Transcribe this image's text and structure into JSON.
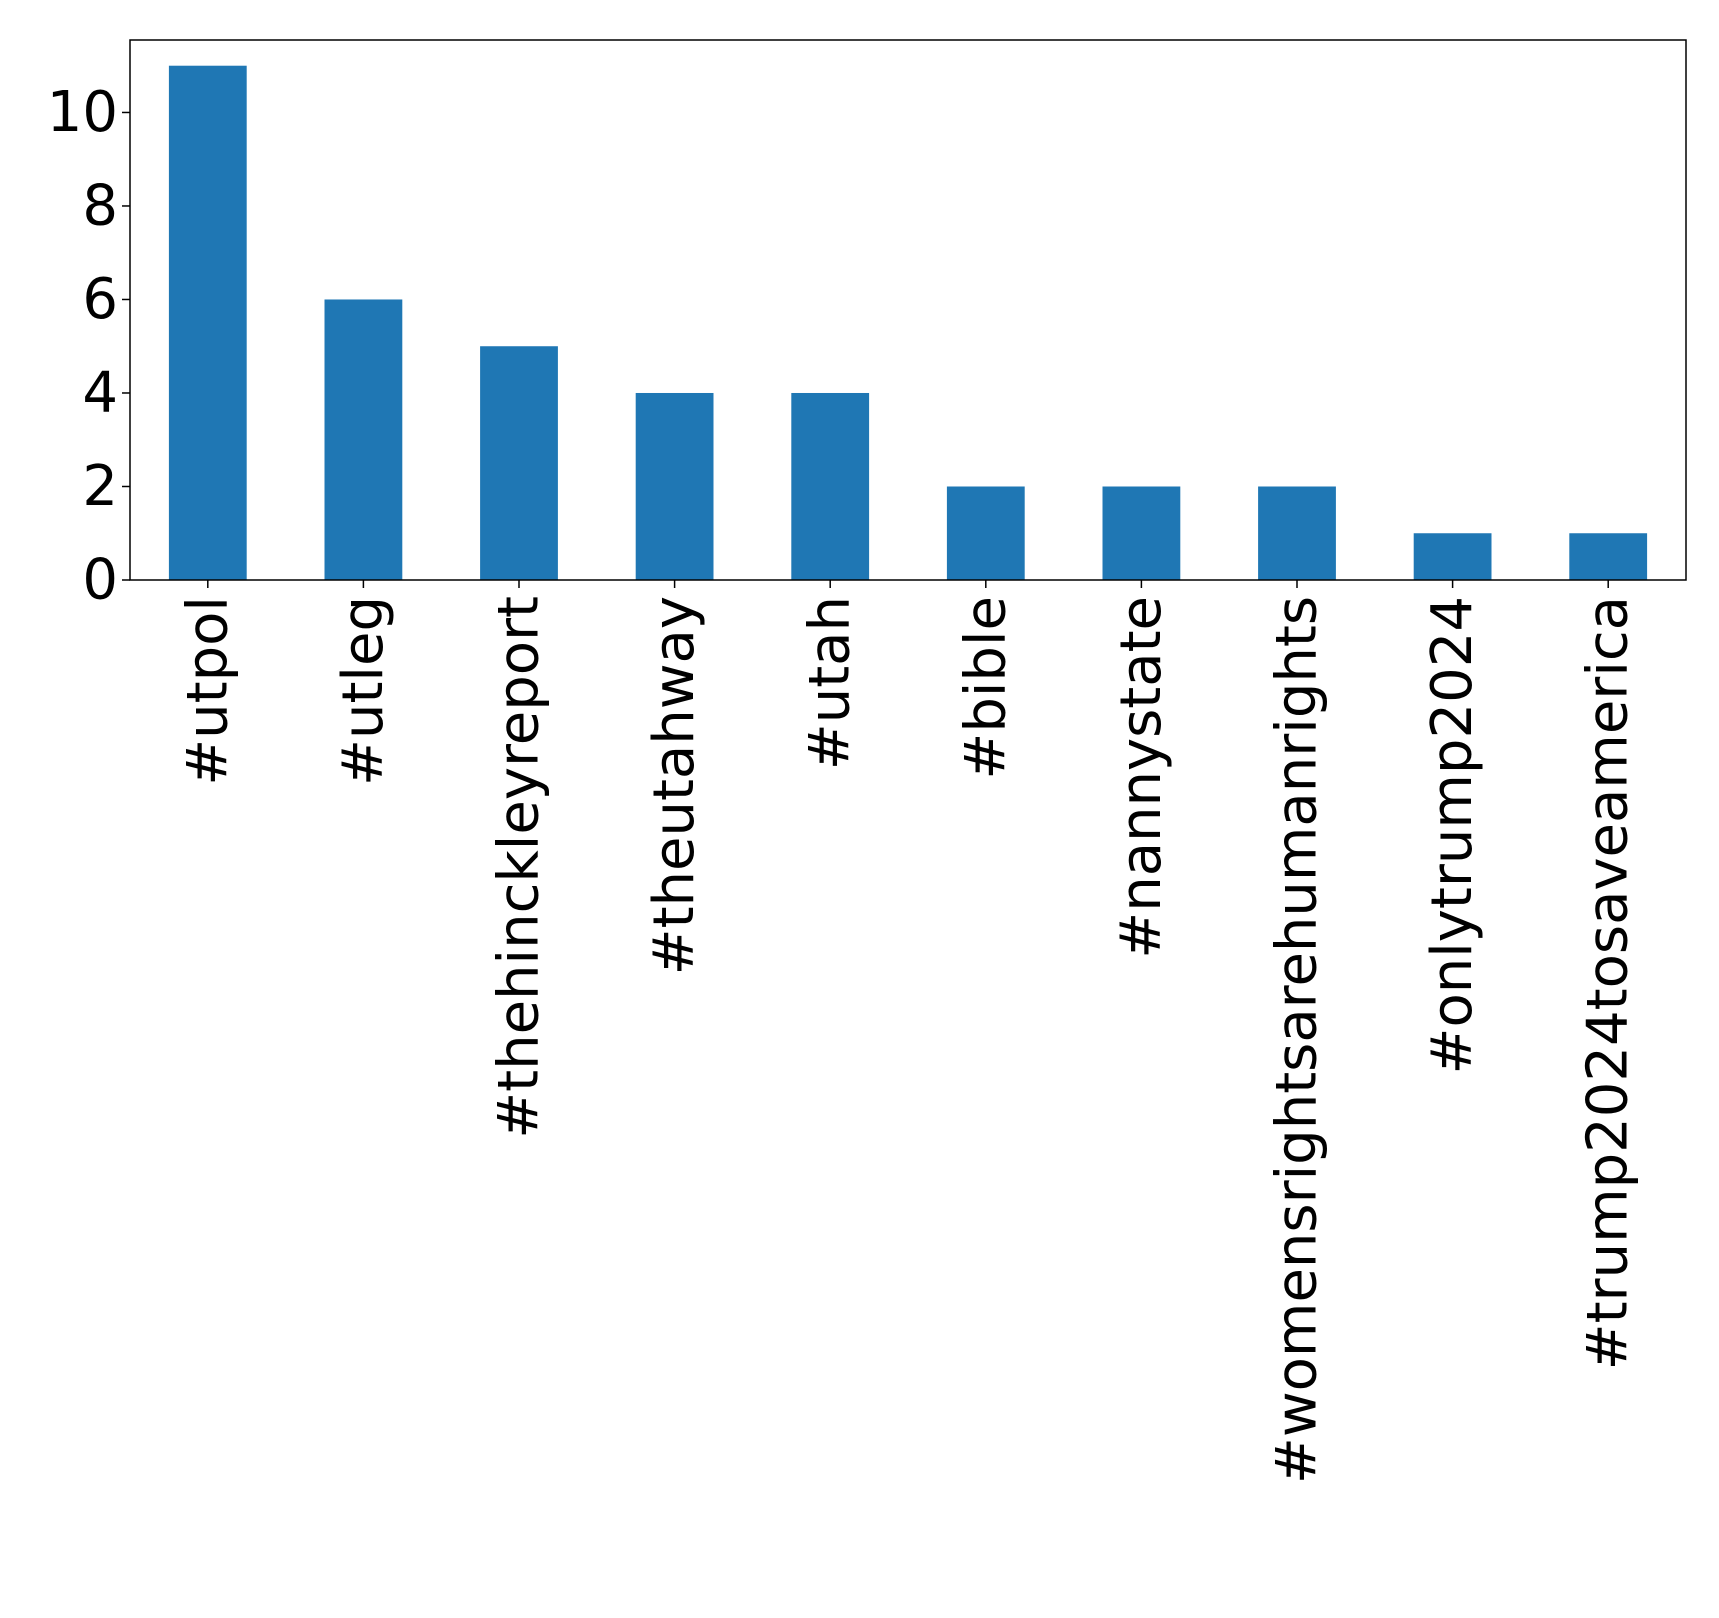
{
  "chart_data": {
    "type": "bar",
    "title": "",
    "xlabel": "",
    "ylabel": "",
    "categories": [
      "#utpol",
      "#utleg",
      "#thehinckleyreport",
      "#theutahway",
      "#utah",
      "#bible",
      "#nannystate",
      "#womensrightsarehumanrights",
      "#onlytrump2024",
      "#trump2024tosaveamerica"
    ],
    "values": [
      11,
      6,
      5,
      4,
      4,
      2,
      2,
      2,
      1,
      1
    ],
    "ylim": [
      0,
      11.55
    ],
    "yticks": [
      0,
      2,
      4,
      6,
      8,
      10
    ],
    "bar_color": "#1f77b4",
    "grid": false,
    "legend": "none"
  }
}
